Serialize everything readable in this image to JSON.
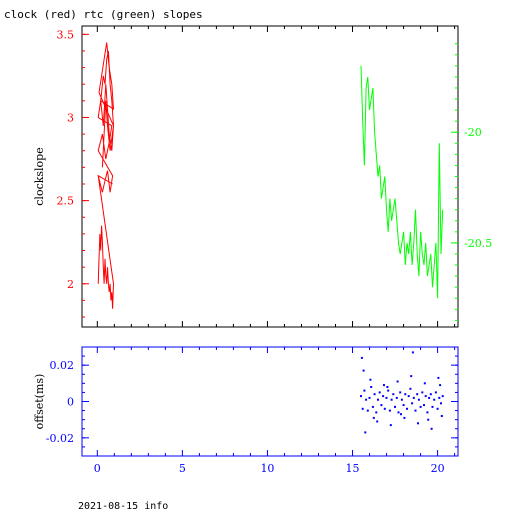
{
  "title": "clock (red) rtc (green) slopes",
  "footer": "2021-08-15 info",
  "colors": {
    "axes": "#000000",
    "clock": "#ff0000",
    "rtc": "#00ff00",
    "offset": "#0000ff"
  },
  "chart_data": [
    {
      "type": "line",
      "title": "clock (red) rtc (green) slopes",
      "ylabel": "clockslope",
      "xlim": [
        -0.9,
        21.2
      ],
      "xticks": [
        0,
        5,
        10,
        15,
        20
      ],
      "ylim": [
        1.74,
        3.55
      ],
      "yticks": [
        2,
        2.5,
        3,
        3.5
      ],
      "ytick_labels": [
        "2",
        "2.5",
        "3",
        "3.5"
      ],
      "y2lim": [
        -20.88,
        -19.52
      ],
      "y2ticks": [
        -20,
        -20.5
      ],
      "y2tick_labels": [
        "-20",
        "-20.5"
      ],
      "series": [
        {
          "name": "clock",
          "axis": "left",
          "x": [
            0.05,
            0.1,
            0.15,
            0.2,
            0.25,
            0.3,
            0.35,
            0.4,
            0.45,
            0.5,
            0.55,
            0.6,
            0.65,
            0.7,
            0.75,
            0.8,
            0.85,
            0.9,
            0.95,
            0.05,
            0.9,
            0.05,
            0.3,
            0.45,
            0.6,
            0.75,
            0.9,
            0.05,
            0.3,
            0.5,
            0.7,
            0.85,
            0.05,
            0.2,
            0.35,
            0.5,
            0.6,
            0.7,
            0.85,
            0.95,
            0.1,
            0.25,
            0.4,
            0.55,
            0.7,
            0.85,
            0.95,
            0.2,
            0.35,
            0.45,
            0.55,
            0.65,
            0.75,
            0.85,
            0.95,
            0.75,
            0.6,
            0.5,
            0.4,
            0.3
          ],
          "values": [
            2.0,
            2.15,
            2.3,
            2.2,
            2.35,
            2.25,
            2.1,
            2.0,
            2.15,
            2.05,
            2.0,
            2.1,
            2.0,
            1.95,
            2.0,
            1.9,
            1.95,
            1.85,
            2.0,
            2.65,
            2.6,
            2.65,
            2.55,
            2.62,
            2.68,
            2.55,
            2.65,
            2.8,
            2.9,
            2.75,
            2.85,
            2.95,
            3.0,
            3.1,
            2.95,
            3.2,
            3.05,
            2.9,
            2.8,
            2.95,
            3.15,
            3.25,
            3.35,
            3.45,
            3.3,
            3.2,
            3.05,
            3.1,
            3.25,
            3.2,
            3.35,
            3.4,
            3.2,
            3.1,
            2.95,
            2.8,
            2.95,
            3.1,
            2.9,
            2.7
          ]
        },
        {
          "name": "rtc",
          "axis": "right",
          "x": [
            15.5,
            15.6,
            15.7,
            15.8,
            15.9,
            16.0,
            16.1,
            16.2,
            16.3,
            16.4,
            16.5,
            16.6,
            16.7,
            16.8,
            16.9,
            17.0,
            17.1,
            17.2,
            17.3,
            17.4,
            17.5,
            17.6,
            17.7,
            17.8,
            17.9,
            18.0,
            18.1,
            18.2,
            18.3,
            18.4,
            18.5,
            18.6,
            18.7,
            18.8,
            18.9,
            19.0,
            19.1,
            19.2,
            19.3,
            19.4,
            19.5,
            19.6,
            19.7,
            19.8,
            19.9,
            20.0,
            20.1,
            20.2,
            20.3
          ],
          "values": [
            -19.7,
            -19.95,
            -20.15,
            -19.8,
            -19.75,
            -19.9,
            -19.85,
            -19.8,
            -20.0,
            -20.1,
            -20.2,
            -20.15,
            -20.3,
            -20.25,
            -20.2,
            -20.35,
            -20.45,
            -20.3,
            -20.4,
            -20.35,
            -20.3,
            -20.4,
            -20.5,
            -20.55,
            -20.5,
            -20.45,
            -20.6,
            -20.5,
            -20.55,
            -20.45,
            -20.6,
            -20.5,
            -20.35,
            -20.55,
            -20.65,
            -20.45,
            -20.55,
            -20.6,
            -20.5,
            -20.65,
            -20.6,
            -20.55,
            -20.7,
            -20.6,
            -20.5,
            -20.75,
            -20.05,
            -20.55,
            -20.35
          ]
        }
      ]
    },
    {
      "type": "scatter",
      "ylabel": "offset(ms)",
      "xlim": [
        -0.9,
        21.2
      ],
      "xticks": [
        0,
        5,
        10,
        15,
        20
      ],
      "xtick_labels": [
        "0",
        "5",
        "10",
        "15",
        "20"
      ],
      "ylim": [
        -0.03,
        0.03
      ],
      "yticks": [
        -0.02,
        0,
        0.02
      ],
      "ytick_labels": [
        "-0.02",
        "0",
        "0.02"
      ],
      "series": [
        {
          "name": "offset",
          "x": [
            15.5,
            15.6,
            15.7,
            15.8,
            15.9,
            16.0,
            16.1,
            16.2,
            16.3,
            16.4,
            16.5,
            16.6,
            16.7,
            16.8,
            16.9,
            17.0,
            17.1,
            17.2,
            17.3,
            17.4,
            17.5,
            17.6,
            17.7,
            17.8,
            17.9,
            18.0,
            18.1,
            18.2,
            18.3,
            18.4,
            18.5,
            18.6,
            18.7,
            18.8,
            18.9,
            19.0,
            19.1,
            19.2,
            19.3,
            19.4,
            19.5,
            19.6,
            19.7,
            19.8,
            19.9,
            20.0,
            20.1,
            20.2,
            20.3,
            15.55,
            15.75,
            16.05,
            16.45,
            16.85,
            17.25,
            17.65,
            18.05,
            18.45,
            18.85,
            19.25,
            19.65,
            20.05,
            20.25,
            15.65,
            16.25,
            17.05,
            17.85,
            18.55,
            19.45,
            20.15
          ],
          "values": [
            0.003,
            -0.004,
            0.006,
            0.001,
            -0.005,
            0.002,
            0.008,
            -0.003,
            0.004,
            -0.006,
            0.001,
            0.005,
            -0.002,
            0.003,
            -0.004,
            0.002,
            0.006,
            -0.005,
            0.001,
            0.004,
            -0.003,
            0.002,
            -0.006,
            0.005,
            0.001,
            -0.002,
            0.004,
            -0.004,
            0.003,
            0.007,
            -0.001,
            0.002,
            -0.005,
            0.004,
            0.001,
            -0.003,
            0.005,
            -0.002,
            0.003,
            -0.006,
            0.002,
            0.004,
            -0.003,
            0.001,
            0.005,
            -0.004,
            0.002,
            -0.001,
            0.003,
            0.024,
            -0.017,
            0.012,
            -0.011,
            0.009,
            -0.013,
            0.011,
            -0.009,
            0.014,
            -0.012,
            0.01,
            -0.015,
            0.013,
            -0.008,
            0.017,
            -0.009,
            0.008,
            -0.007,
            0.027,
            -0.01,
            0.009
          ]
        }
      ]
    }
  ]
}
